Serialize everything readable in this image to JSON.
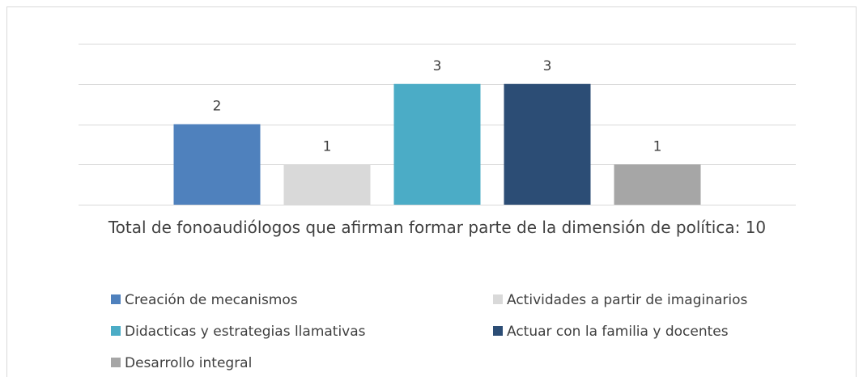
{
  "chart_data": {
    "type": "bar",
    "categories": [
      "Total de fonoaudiólogos que afirman formar parte de la dimensión de política: 10"
    ],
    "series": [
      {
        "name": "Creación de mecanismos",
        "color": "#4f81bd",
        "values": [
          2
        ]
      },
      {
        "name": "Actividades a partir de imaginarios",
        "color": "#d9d9d9",
        "values": [
          1
        ]
      },
      {
        "name": "Didacticas y estrategias llamativas",
        "color": "#4bacc6",
        "values": [
          3
        ]
      },
      {
        "name": "Actuar con la familia y docentes",
        "color": "#2c4d75",
        "values": [
          3
        ]
      },
      {
        "name": "Desarrollo integral",
        "color": "#a6a6a6",
        "values": [
          1
        ]
      }
    ],
    "ylim": [
      0,
      4
    ],
    "yticks": [
      0,
      1,
      2,
      3,
      4
    ],
    "grid": true,
    "legend": "bottom"
  }
}
